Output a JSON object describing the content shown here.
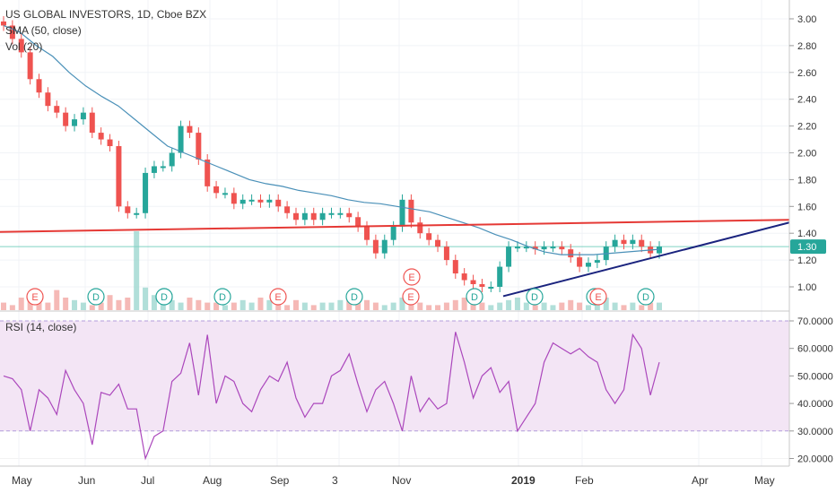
{
  "header": {
    "symbol_line": "US GLOBAL INVESTORS, 1D, Cboe BZX",
    "ma_line": "SMA (50, close)",
    "vol_line": "Vol (20)"
  },
  "rsi": {
    "label": "RSI (14, close)",
    "upper": 70,
    "lower": 30,
    "ticks": [
      "70.0000",
      "60.0000",
      "50.0000",
      "40.0000",
      "30.0000",
      "20.0000"
    ]
  },
  "price_axis": {
    "ticks": [
      "3.00",
      "2.80",
      "2.60",
      "2.40",
      "2.20",
      "2.00",
      "1.80",
      "1.60",
      "1.40",
      "1.20",
      "1.00"
    ],
    "current": "1.30"
  },
  "time_axis": {
    "labels": [
      "May",
      "Jun",
      "Jul",
      "Aug",
      "Sep",
      "3",
      "Nov",
      "2019",
      "Feb",
      "Apr",
      "May"
    ]
  },
  "event_markers": [
    "E",
    "D",
    "D",
    "D",
    "E",
    "D",
    "E",
    "D",
    "D",
    "D",
    "D",
    "E",
    "E",
    "D"
  ],
  "colors": {
    "up": "#26a69a",
    "down": "#ef5350",
    "sma": "#4a90b8",
    "resistance": "#e53935",
    "support": "#1a237e",
    "rsi_line": "#ab47bc",
    "rsi_band": "#f3e5f5",
    "current_line": "#7fd3c3",
    "current_tag": "#26a69a"
  },
  "chart_data": {
    "type": "candlestick",
    "date_range": [
      "2018-05",
      "2019-05"
    ],
    "price_range": [
      0.9,
      3.1
    ],
    "close_path": [
      2.95,
      2.85,
      2.75,
      2.55,
      2.45,
      2.35,
      2.3,
      2.2,
      2.25,
      2.3,
      2.15,
      2.1,
      2.05,
      1.6,
      1.55,
      1.55,
      1.85,
      1.9,
      1.9,
      2.0,
      2.2,
      2.15,
      1.95,
      1.75,
      1.7,
      1.7,
      1.62,
      1.65,
      1.65,
      1.63,
      1.65,
      1.6,
      1.55,
      1.5,
      1.55,
      1.5,
      1.55,
      1.55,
      1.55,
      1.52,
      1.45,
      1.35,
      1.25,
      1.35,
      1.45,
      1.65,
      1.48,
      1.4,
      1.35,
      1.3,
      1.2,
      1.1,
      1.05,
      1.02,
      1.0,
      1.0,
      1.15,
      1.3,
      1.3,
      1.3,
      1.28,
      1.3,
      1.3,
      1.28,
      1.22,
      1.15,
      1.18,
      1.2,
      1.3,
      1.35,
      1.32,
      1.35,
      1.3,
      1.25,
      1.3
    ],
    "sma50_path": [
      2.95,
      2.9,
      2.8,
      2.72,
      2.6,
      2.5,
      2.42,
      2.35,
      2.25,
      2.15,
      2.05,
      2.0,
      1.95,
      1.9,
      1.85,
      1.8,
      1.77,
      1.75,
      1.72,
      1.7,
      1.68,
      1.65,
      1.63,
      1.62,
      1.6,
      1.58,
      1.56,
      1.52,
      1.48,
      1.44,
      1.39,
      1.35,
      1.3,
      1.26,
      1.24,
      1.24,
      1.24,
      1.25,
      1.26,
      1.27,
      1.28
    ],
    "resistance_line": {
      "from": [
        "2018-05",
        1.41
      ],
      "to": [
        "2019-05",
        1.5
      ]
    },
    "support_line": {
      "from": [
        "2018-12",
        0.93
      ],
      "to": [
        "2019-05",
        1.48
      ]
    },
    "rsi_path": [
      50,
      49,
      45,
      30,
      45,
      42,
      36,
      52,
      45,
      40,
      25,
      44,
      43,
      47,
      38,
      38,
      20,
      28,
      30,
      48,
      51,
      62,
      43,
      65,
      40,
      50,
      48,
      40,
      37,
      45,
      50,
      48,
      55,
      42,
      35,
      40,
      40,
      50,
      52,
      58,
      47,
      37,
      45,
      48,
      40,
      30,
      50,
      37,
      42,
      38,
      40,
      66,
      55,
      42,
      50,
      53,
      44,
      48,
      30,
      35,
      40,
      55,
      62,
      60,
      58,
      60,
      57,
      55,
      45,
      40,
      45,
      65,
      60,
      43,
      55
    ],
    "volume_profile": [
      0.3,
      0.2,
      0.5,
      0.4,
      0.3,
      0.3,
      0.8,
      0.5,
      0.4,
      0.3,
      0.2,
      0.3,
      0.6,
      0.4,
      0.5,
      1.0,
      0.9,
      0.6,
      0.5,
      0.4,
      0.3,
      0.5,
      0.4,
      0.3,
      0.3,
      0.2,
      0.3,
      0.4,
      0.3,
      0.5,
      0.4,
      0.3,
      0.2,
      0.4,
      0.3,
      0.2,
      0.3,
      0.3,
      0.4,
      0.5,
      0.6,
      0.4,
      0.3,
      0.2,
      0.3,
      0.5,
      0.4,
      0.3,
      0.2,
      0.2,
      0.3,
      0.4,
      0.5,
      0.6,
      0.3,
      0.2,
      0.3,
      0.4,
      0.5,
      0.3,
      0.2,
      0.3,
      0.2,
      0.3,
      0.4,
      0.3,
      0.2,
      0.3,
      0.5,
      0.3,
      0.2,
      0.3,
      0.2,
      0.3,
      0.3
    ]
  }
}
